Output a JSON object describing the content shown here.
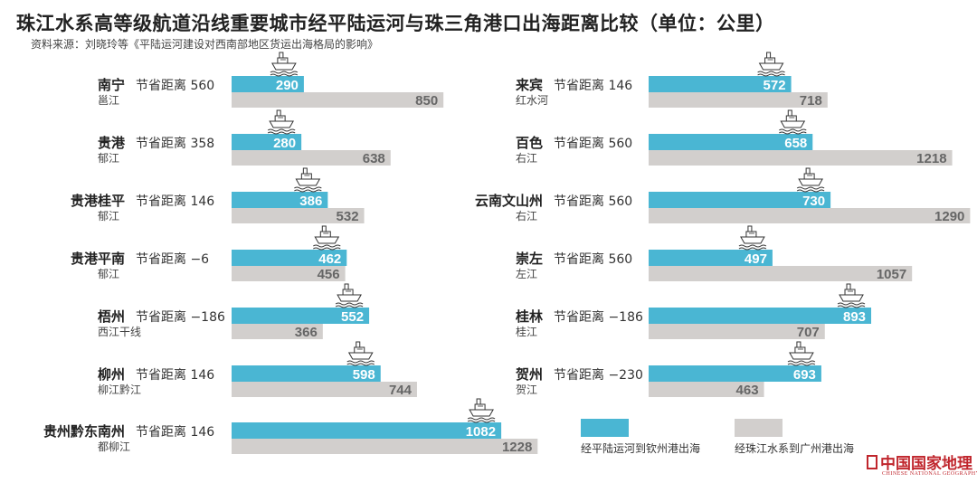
{
  "title": "珠江水系高等级航道沿线重要城市经平陆运河与珠三角港口出海距离比较（单位：公里）",
  "source": "资料来源：刘晓玲等《平陆运河建设对西南部地区货运出海格局的影响》",
  "colors": {
    "canal": "#4ab6d3",
    "river": "#d2cfcd"
  },
  "legend": {
    "canal": "经平陆运河到钦州港出海",
    "river": "经珠江水系到广州港出海"
  },
  "brand": {
    "cn": "中国国家地理",
    "en": "CHINESE NATIONAL GEOGRAPHY"
  },
  "chart_data": {
    "type": "bar",
    "orientation": "horizontal",
    "unit": "公里",
    "series": [
      {
        "key": "canal",
        "name": "经平陆运河到钦州港出海"
      },
      {
        "key": "river",
        "name": "经珠江水系到广州港出海"
      }
    ],
    "rows": [
      {
        "city": "南宁",
        "river": "邕江",
        "saving_label": "节省距离",
        "saving": "560",
        "canal_km": 290,
        "river_km": 850
      },
      {
        "city": "贵港",
        "river": "郁江",
        "saving_label": "节省距离",
        "saving": "358",
        "canal_km": 280,
        "river_km": 638
      },
      {
        "city": "贵港桂平",
        "river": "郁江",
        "saving_label": "节省距离",
        "saving": "146",
        "canal_km": 386,
        "river_km": 532
      },
      {
        "city": "贵港平南",
        "river": "郁江",
        "saving_label": "节省距离",
        "saving": "−6",
        "canal_km": 462,
        "river_km": 456
      },
      {
        "city": "梧州",
        "river": "西江干线",
        "saving_label": "节省距离",
        "saving": "−186",
        "canal_km": 552,
        "river_km": 366
      },
      {
        "city": "柳州",
        "river": "柳江黔江",
        "saving_label": "节省距离",
        "saving": "146",
        "canal_km": 598,
        "river_km": 744
      },
      {
        "city": "贵州黔东南州",
        "river": "都柳江",
        "saving_label": "节省距离",
        "saving": "146",
        "canal_km": 1082,
        "river_km": 1228
      },
      {
        "city": "来宾",
        "river": "红水河",
        "saving_label": "节省距离",
        "saving": "146",
        "canal_km": 572,
        "river_km": 718
      },
      {
        "city": "百色",
        "river": "右江",
        "saving_label": "节省距离",
        "saving": "560",
        "canal_km": 658,
        "river_km": 1218
      },
      {
        "city": "云南文山州",
        "river": "右江",
        "saving_label": "节省距离",
        "saving": "560",
        "canal_km": 730,
        "river_km": 1290
      },
      {
        "city": "崇左",
        "river": "左江",
        "saving_label": "节省距离",
        "saving": "560",
        "canal_km": 497,
        "river_km": 1057
      },
      {
        "city": "桂林",
        "river": "桂江",
        "saving_label": "节省距离",
        "saving": "−186",
        "canal_km": 893,
        "river_km": 707
      },
      {
        "city": "贺州",
        "river": "贺江",
        "saving_label": "节省距离",
        "saving": "−230",
        "canal_km": 693,
        "river_km": 463
      }
    ]
  }
}
